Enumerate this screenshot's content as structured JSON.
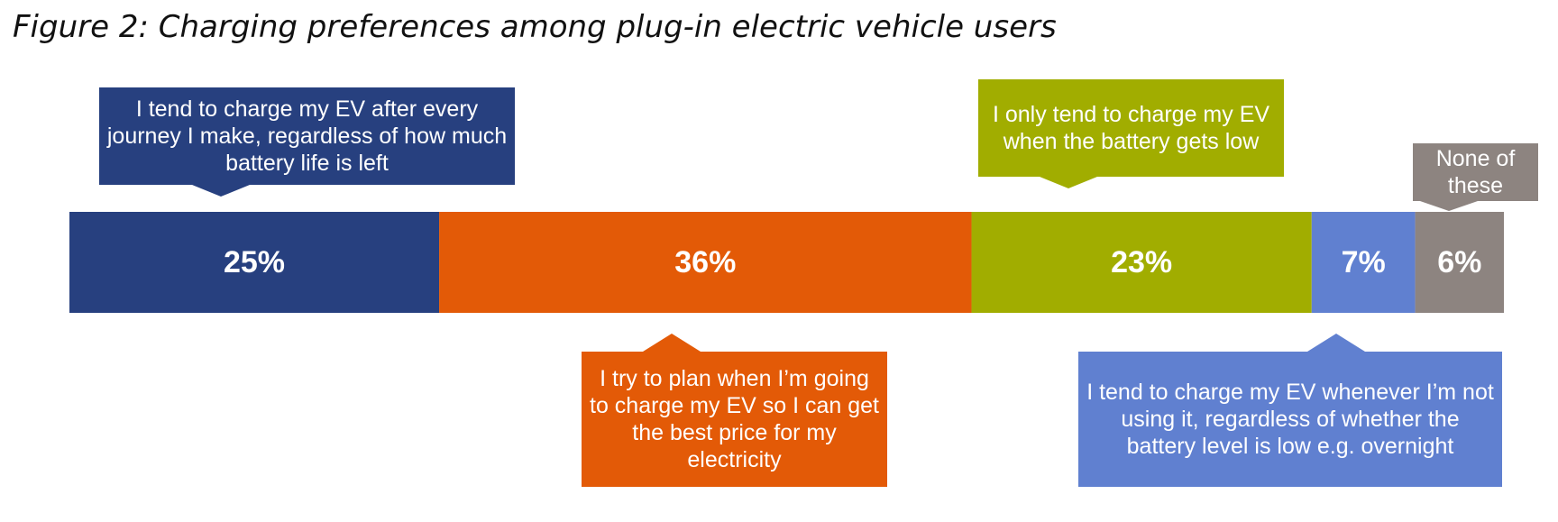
{
  "chart_data": {
    "type": "stacked_bar",
    "title": "Figure 2: Charging preferences among plug-in electric vehicle users",
    "series": [
      {
        "name": "I tend to charge my EV after every journey I make, regardless of how much battery life is left",
        "color": "#27407f",
        "values": [
          25
        ],
        "value_labels": [
          "25%"
        ]
      },
      {
        "name": "I try to plan when I’m going to charge my EV so I can get the best price for my electricity",
        "color": "#e35a07",
        "values": [
          36
        ],
        "value_labels": [
          "36%"
        ]
      },
      {
        "name": "I only tend to charge my EV when the battery gets low",
        "color": "#a1ad00",
        "values": [
          23
        ],
        "value_labels": [
          "23%"
        ]
      },
      {
        "name": "I tend to charge my EV whenever I’m not using it, regardless of whether the battery level is low e.g. overnight",
        "color": "#6080d0",
        "values": [
          7
        ],
        "value_labels": [
          "7%"
        ]
      },
      {
        "name": "None of these",
        "color": "#8d8480",
        "values": [
          6
        ],
        "value_labels": [
          "6%"
        ]
      }
    ]
  }
}
